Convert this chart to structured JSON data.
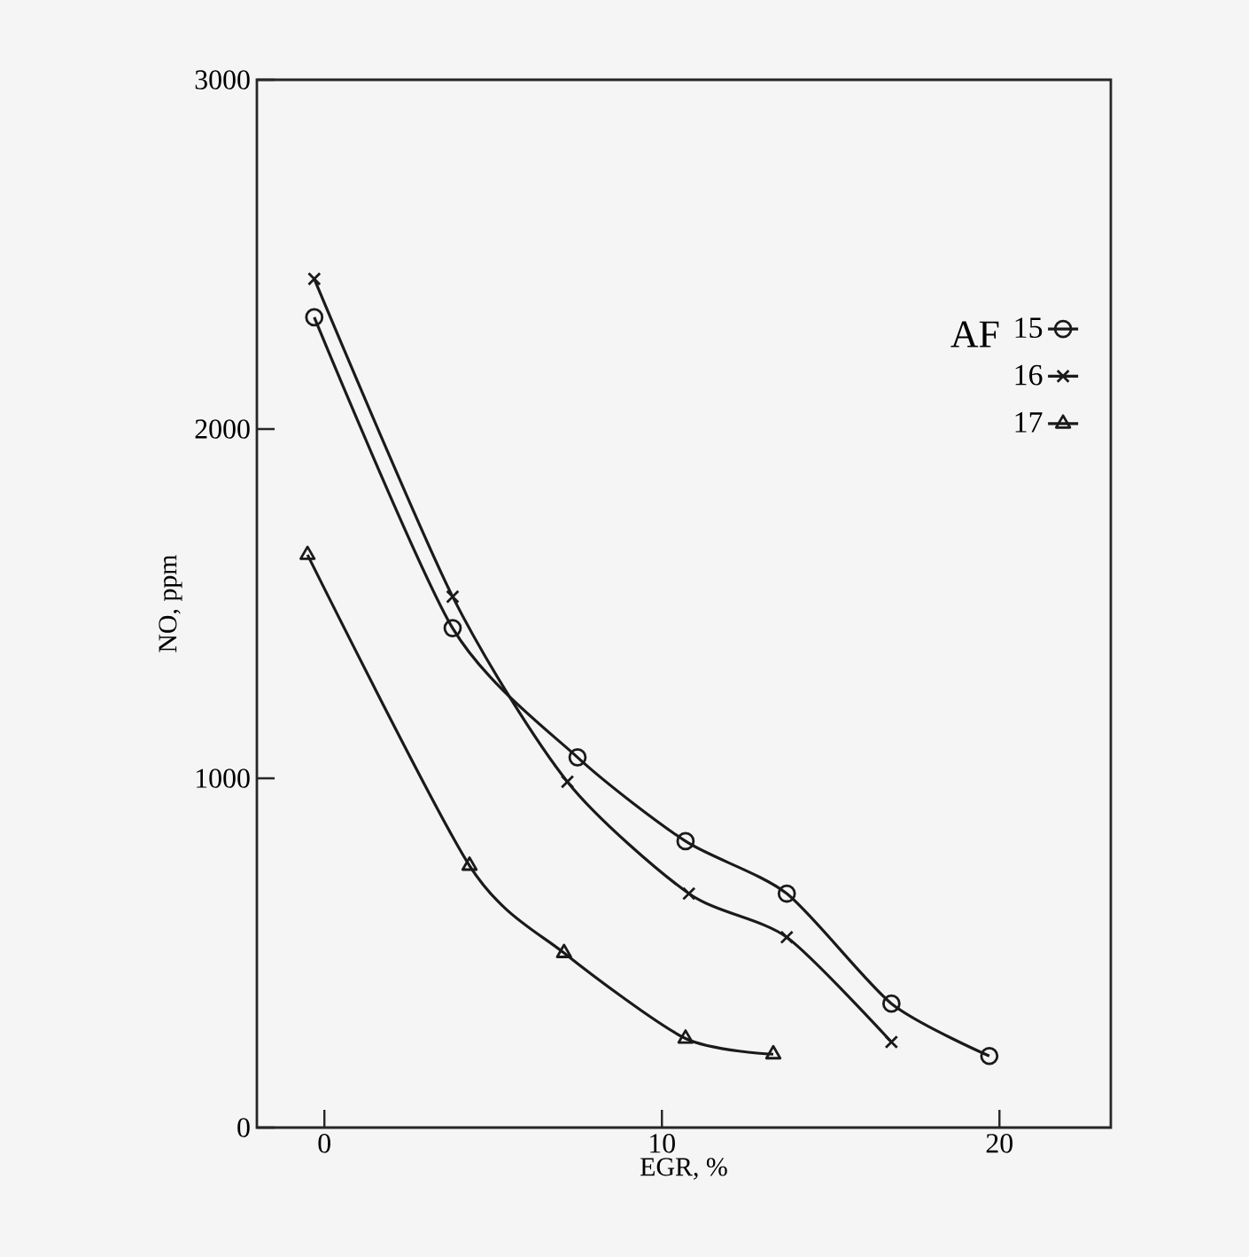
{
  "chart_data": {
    "type": "line",
    "xlabel": "EGR, %",
    "ylabel": "NO, ppm",
    "legend_title": "AF",
    "xlim": [
      -2,
      23.3
    ],
    "ylim": [
      0,
      3000
    ],
    "xticks": [
      0,
      10,
      20
    ],
    "yticks": [
      0,
      1000,
      2000,
      3000
    ],
    "legend": "top right",
    "line_style": "solid",
    "series": [
      {
        "name": "15",
        "color": "#1a1a1a",
        "marker": "circle",
        "x": [
          -0.3,
          3.8,
          7.5,
          10.7,
          13.7,
          16.8,
          19.7
        ],
        "values": [
          2320,
          1430,
          1060,
          820,
          670,
          355,
          205
        ]
      },
      {
        "name": "16",
        "color": "#1a1a1a",
        "marker": "cross",
        "x": [
          -0.3,
          3.8,
          7.2,
          10.8,
          13.7,
          16.8
        ],
        "values": [
          2430,
          1520,
          990,
          670,
          545,
          245
        ]
      },
      {
        "name": "17",
        "color": "#1a1a1a",
        "marker": "triangle",
        "x": [
          -0.5,
          4.3,
          7.1,
          10.7,
          13.3
        ],
        "values": [
          1640,
          750,
          500,
          255,
          210
        ]
      }
    ]
  }
}
